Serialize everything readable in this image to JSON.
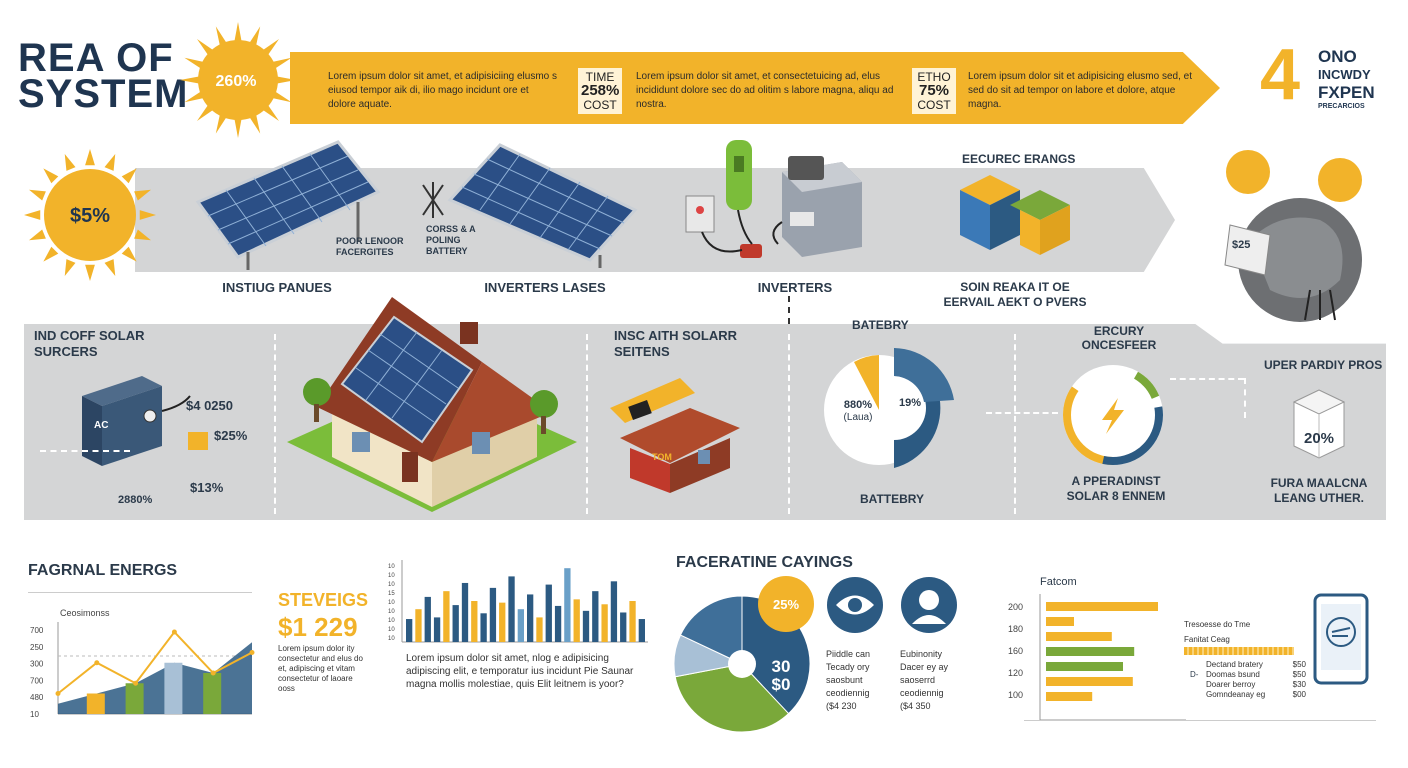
{
  "header": {
    "title_line1": "REA OF",
    "title_line2": "SYSTEM",
    "sun_badge": "260%",
    "ribbon": {
      "blocks": [
        "Lorem ipsum dolor sit amet, et adipisiciing elusmo s eiusod tempor aik di, ilio mago incidunt ore et dolore aquate.",
        "Lorem ipsum dolor sit amet, et consectetuicing ad, elus incididunt dolore sec do ad olitim s labore magna, aliqu ad nostra.",
        "Lorem ipsum dolor sit et adipisicing elusmo sed, et sed do sit ad tempor on labore et dolore, atque magna."
      ],
      "stats": [
        {
          "top": "TIME",
          "value": "258%",
          "bottom": "COST"
        },
        {
          "top": "ETHO",
          "value": "75%",
          "bottom": "COST"
        }
      ]
    },
    "right": {
      "big_number": "4",
      "line1": "ONO",
      "line2": "INCWDY",
      "line3": "FXPEN",
      "line4": "PRECARCIOS"
    }
  },
  "row1": {
    "sun_value": "$5%",
    "panel_caption1": "POOR LENOOR FACERGITES",
    "panel_caption2": "CORSS & A POLING BATTERY",
    "label_panels": "INSTIUG PANUES",
    "label_inverters_lases": "INVERTERS LASES",
    "label_inverters": "INVERTERS",
    "energy_title": "EECUREC ERANGS",
    "energy_label": "SOIN REAKA IT OE EERVAIL AEKT O PVERS",
    "globe_tag": "$25"
  },
  "row2": {
    "left_title": "IND COFF SOLAR SURCERS",
    "left_box": "AC",
    "left_stats": [
      "$4 0250",
      "$25%",
      "$13%"
    ],
    "left_bottom": "2880%",
    "mid_title": "INSC AITH SOLARR SEITENS",
    "house_flag": "TOM",
    "battery_top": "BATEBRY",
    "battery_bottom": "BATTEBRY",
    "donut_left": "880%",
    "donut_left_sub": "(Laua)",
    "donut_right": "19%",
    "energy_title": "ERCURY ONCESFEER",
    "energy_bottom": "A PPERADINST SOLAR 8 ENNEM",
    "right_title": "UPER PARDIY PROS",
    "right_value": "20%",
    "right_bottom": "FURA MAALCNA LEANG UTHER."
  },
  "bottom": {
    "line_chart": {
      "title": "FAGRNAL ENERGS",
      "legend": "Ceosimonss",
      "y_ticks": [
        "700",
        "250",
        "300",
        "700",
        "480",
        "10"
      ],
      "series": {
        "gold": [
          2,
          5,
          3,
          8,
          4,
          6
        ],
        "teal": [
          1,
          2,
          3,
          5,
          4,
          7
        ]
      }
    },
    "savings": {
      "title": "STEVEIGS",
      "value": "$1 229",
      "text": "Lorem ipsum dolor ity consectetur and elus do et, adipiscing et vitam consectetur of laoare ooss",
      "lorem": "Lorem ipsum dolor sit amet, nlog e adipisicing adipiscing elit, e temporatur ius incidunt Pie Saunar magna mollis molestiae, quis Elit leitnem is yoor?"
    },
    "bar_chart": {
      "y_ticks": [
        "10",
        "10",
        "10",
        "15",
        "10",
        "10",
        "10",
        "10",
        "10"
      ],
      "values": [
        28,
        40,
        55,
        30,
        62,
        45,
        72,
        50,
        35,
        66,
        48,
        80,
        40,
        58,
        30,
        70,
        44,
        90,
        52,
        38,
        62,
        46,
        74,
        36,
        50,
        28
      ],
      "colors": [
        "#2c5a82",
        "#f2b32a",
        "#2c5a82",
        "#2c5a82",
        "#f2b32a",
        "#2c5a82",
        "#2c5a82",
        "#f2b32a",
        "#2c5a82",
        "#2c5a82",
        "#f2b32a",
        "#2c5a82",
        "#6aa0c8",
        "#2c5a82",
        "#f2b32a",
        "#2c5a82",
        "#2c5a82",
        "#6aa0c8",
        "#f2b32a",
        "#2c5a82",
        "#2c5a82",
        "#f2b32a",
        "#2c5a82",
        "#2c5a82",
        "#f2b32a",
        "#2c5a82"
      ]
    },
    "pie": {
      "title": "FACERATINE CAYINGS",
      "bubble": "25%",
      "center_top": "30",
      "center_bottom": "$0",
      "items": [
        {
          "name": "Piiddle can",
          "lines": [
            "Tecady ory",
            "saosbunt",
            "ceodiennig",
            "($4 230"
          ]
        },
        {
          "name": "Eubinonity",
          "lines": [
            "Dacer ey ay",
            "saoserrd",
            "ceodiennig",
            "($4 350"
          ]
        }
      ],
      "slices": [
        {
          "value": 38,
          "color": "#2c5a82"
        },
        {
          "value": 34,
          "color": "#7aa83a"
        },
        {
          "value": 10,
          "color": "#a8c0d6"
        },
        {
          "value": 18,
          "color": "#3f6f99"
        }
      ]
    },
    "hbar": {
      "title": "Fatcom",
      "y_ticks": [
        "200",
        "180",
        "160",
        "120",
        "100"
      ],
      "values": [
        0.8,
        0.2,
        0.47,
        0.63,
        0.55,
        0.62,
        0.33
      ],
      "colors": [
        "#f2b32a",
        "#f2b32a",
        "#f2b32a",
        "#7aa83a",
        "#7aa83a",
        "#f2b32a",
        "#f2b32a"
      ],
      "legend_title": "Tresoesse do Tme",
      "legend_sub": "Fanitat Ceag",
      "rows": [
        {
          "k": "Dectand bratery",
          "v": "$50"
        },
        {
          "k": "Doomas bsund",
          "v": "$50"
        },
        {
          "k": "Doarer berroy",
          "v": "$30"
        },
        {
          "k": "Gomndeanay eg",
          "v": "$00"
        }
      ],
      "marker": "D-"
    }
  }
}
